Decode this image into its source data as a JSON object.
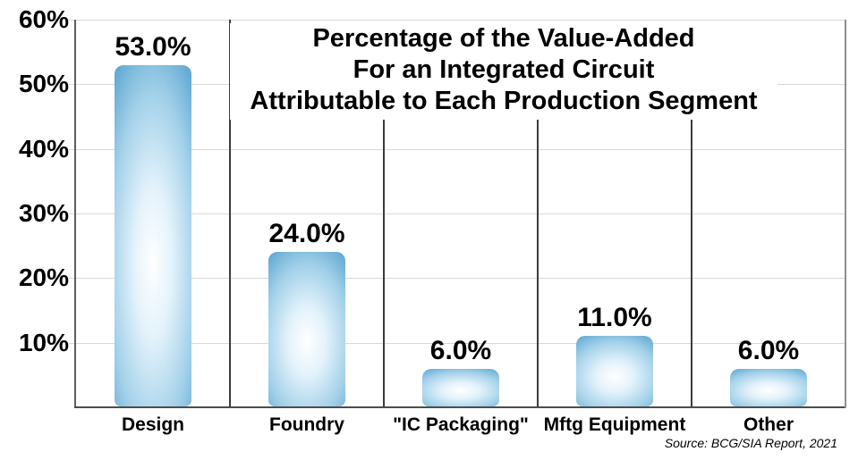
{
  "chart_data": {
    "type": "bar",
    "title_lines": [
      "Percentage of the Value-Added",
      "For an Integrated Circuit",
      "Attributable to Each Production Segment"
    ],
    "categories": [
      "Design",
      "Foundry",
      "\"IC Packaging\"",
      "Mftg Equipment",
      "Other"
    ],
    "values": [
      53.0,
      24.0,
      6.0,
      11.0,
      6.0
    ],
    "value_labels": [
      "53.0%",
      "24.0%",
      "6.0%",
      "11.0%",
      "6.0%"
    ],
    "y_ticks": [
      {
        "value": 60,
        "label": "60%"
      },
      {
        "value": 50,
        "label": "50%"
      },
      {
        "value": 40,
        "label": "40%"
      },
      {
        "value": 30,
        "label": "30%"
      },
      {
        "value": 20,
        "label": "20%"
      },
      {
        "value": 10,
        "label": "10%"
      }
    ],
    "ylim": [
      0,
      60
    ],
    "xlabel": "",
    "ylabel": "",
    "grid": "horizontal",
    "legend": "none",
    "source": "Source: BCG/SIA Report, 2021",
    "colors": {
      "bar_edge": "#3a89be",
      "bar_mid": "#a3d1e9",
      "bar_center": "#ffffff",
      "gridline": "#d8d8d8",
      "axis": "#5f5f5f",
      "segment_divider": "#3c3c3c",
      "plot_right_border": "#8f8f8f",
      "text": "#000000",
      "background": "#ffffff"
    }
  }
}
